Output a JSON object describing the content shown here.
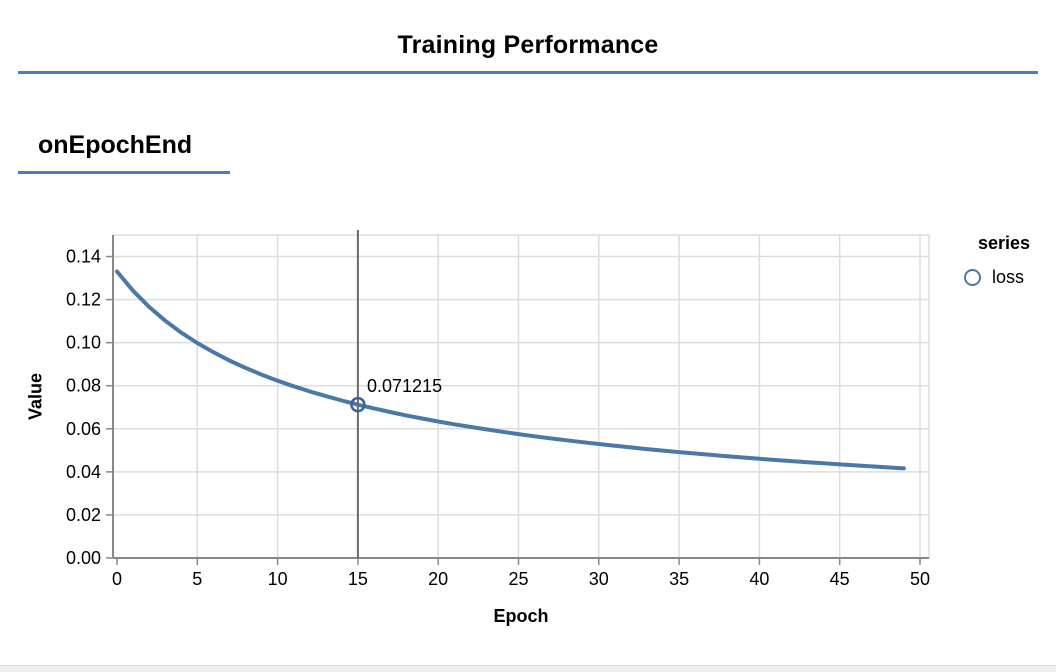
{
  "header": {
    "title": "Training Performance"
  },
  "section": {
    "label": "onEpochEnd"
  },
  "legend": {
    "title": "series",
    "items": [
      {
        "label": "loss",
        "color": "#4c78a8"
      }
    ]
  },
  "colors": {
    "accent_rule": "#4a7dbf",
    "series_line": "#4c78a8",
    "marker_ring": "#3a6499",
    "hover_rule": "#6a6a6a",
    "gridline": "#dddddd",
    "axis": "#888888"
  },
  "chart_data": {
    "type": "line",
    "title": "Training Performance",
    "subtitle": "onEpochEnd",
    "xlabel": "Epoch",
    "ylabel": "Value",
    "xlim": [
      0,
      50.6
    ],
    "ylim": [
      0,
      0.15
    ],
    "x_ticks": [
      0,
      5,
      10,
      15,
      20,
      25,
      30,
      35,
      40,
      45,
      50
    ],
    "y_ticks": [
      0,
      0.02,
      0.04,
      0.06,
      0.08,
      0.1,
      0.12,
      0.14
    ],
    "y_tick_labels": [
      "0.00",
      "0.02",
      "0.04",
      "0.06",
      "0.08",
      "0.10",
      "0.12",
      "0.14"
    ],
    "grid": true,
    "legend_position": "right",
    "series": [
      {
        "name": "loss",
        "x": [
          0,
          1,
          2,
          3,
          4,
          5,
          6,
          7,
          8,
          9,
          10,
          11,
          12,
          13,
          14,
          15,
          16,
          17,
          18,
          19,
          20,
          21,
          22,
          23,
          24,
          25,
          26,
          27,
          28,
          29,
          30,
          31,
          32,
          33,
          34,
          35,
          36,
          37,
          38,
          39,
          40,
          41,
          42,
          43,
          44,
          45,
          46,
          47,
          48,
          49
        ],
        "values": [
          0.13304,
          0.12409,
          0.1166,
          0.1102,
          0.10467,
          0.09983,
          0.09555,
          0.09173,
          0.08829,
          0.08518,
          0.08235,
          0.07975,
          0.07737,
          0.07517,
          0.07313,
          0.071215,
          0.06946,
          0.0678,
          0.06624,
          0.06478,
          0.0634,
          0.0621,
          0.06087,
          0.0597,
          0.05859,
          0.05753,
          0.05652,
          0.05556,
          0.05464,
          0.05376,
          0.05292,
          0.05211,
          0.05134,
          0.05059,
          0.04988,
          0.04919,
          0.04852,
          0.04788,
          0.04726,
          0.04667,
          0.04609,
          0.04553,
          0.04499,
          0.04446,
          0.04396,
          0.04346,
          0.04299,
          0.04252,
          0.04207,
          0.04163
        ]
      }
    ],
    "highlight": {
      "series": "loss",
      "x": 15,
      "y": 0.071215,
      "label": "0.071215"
    }
  }
}
